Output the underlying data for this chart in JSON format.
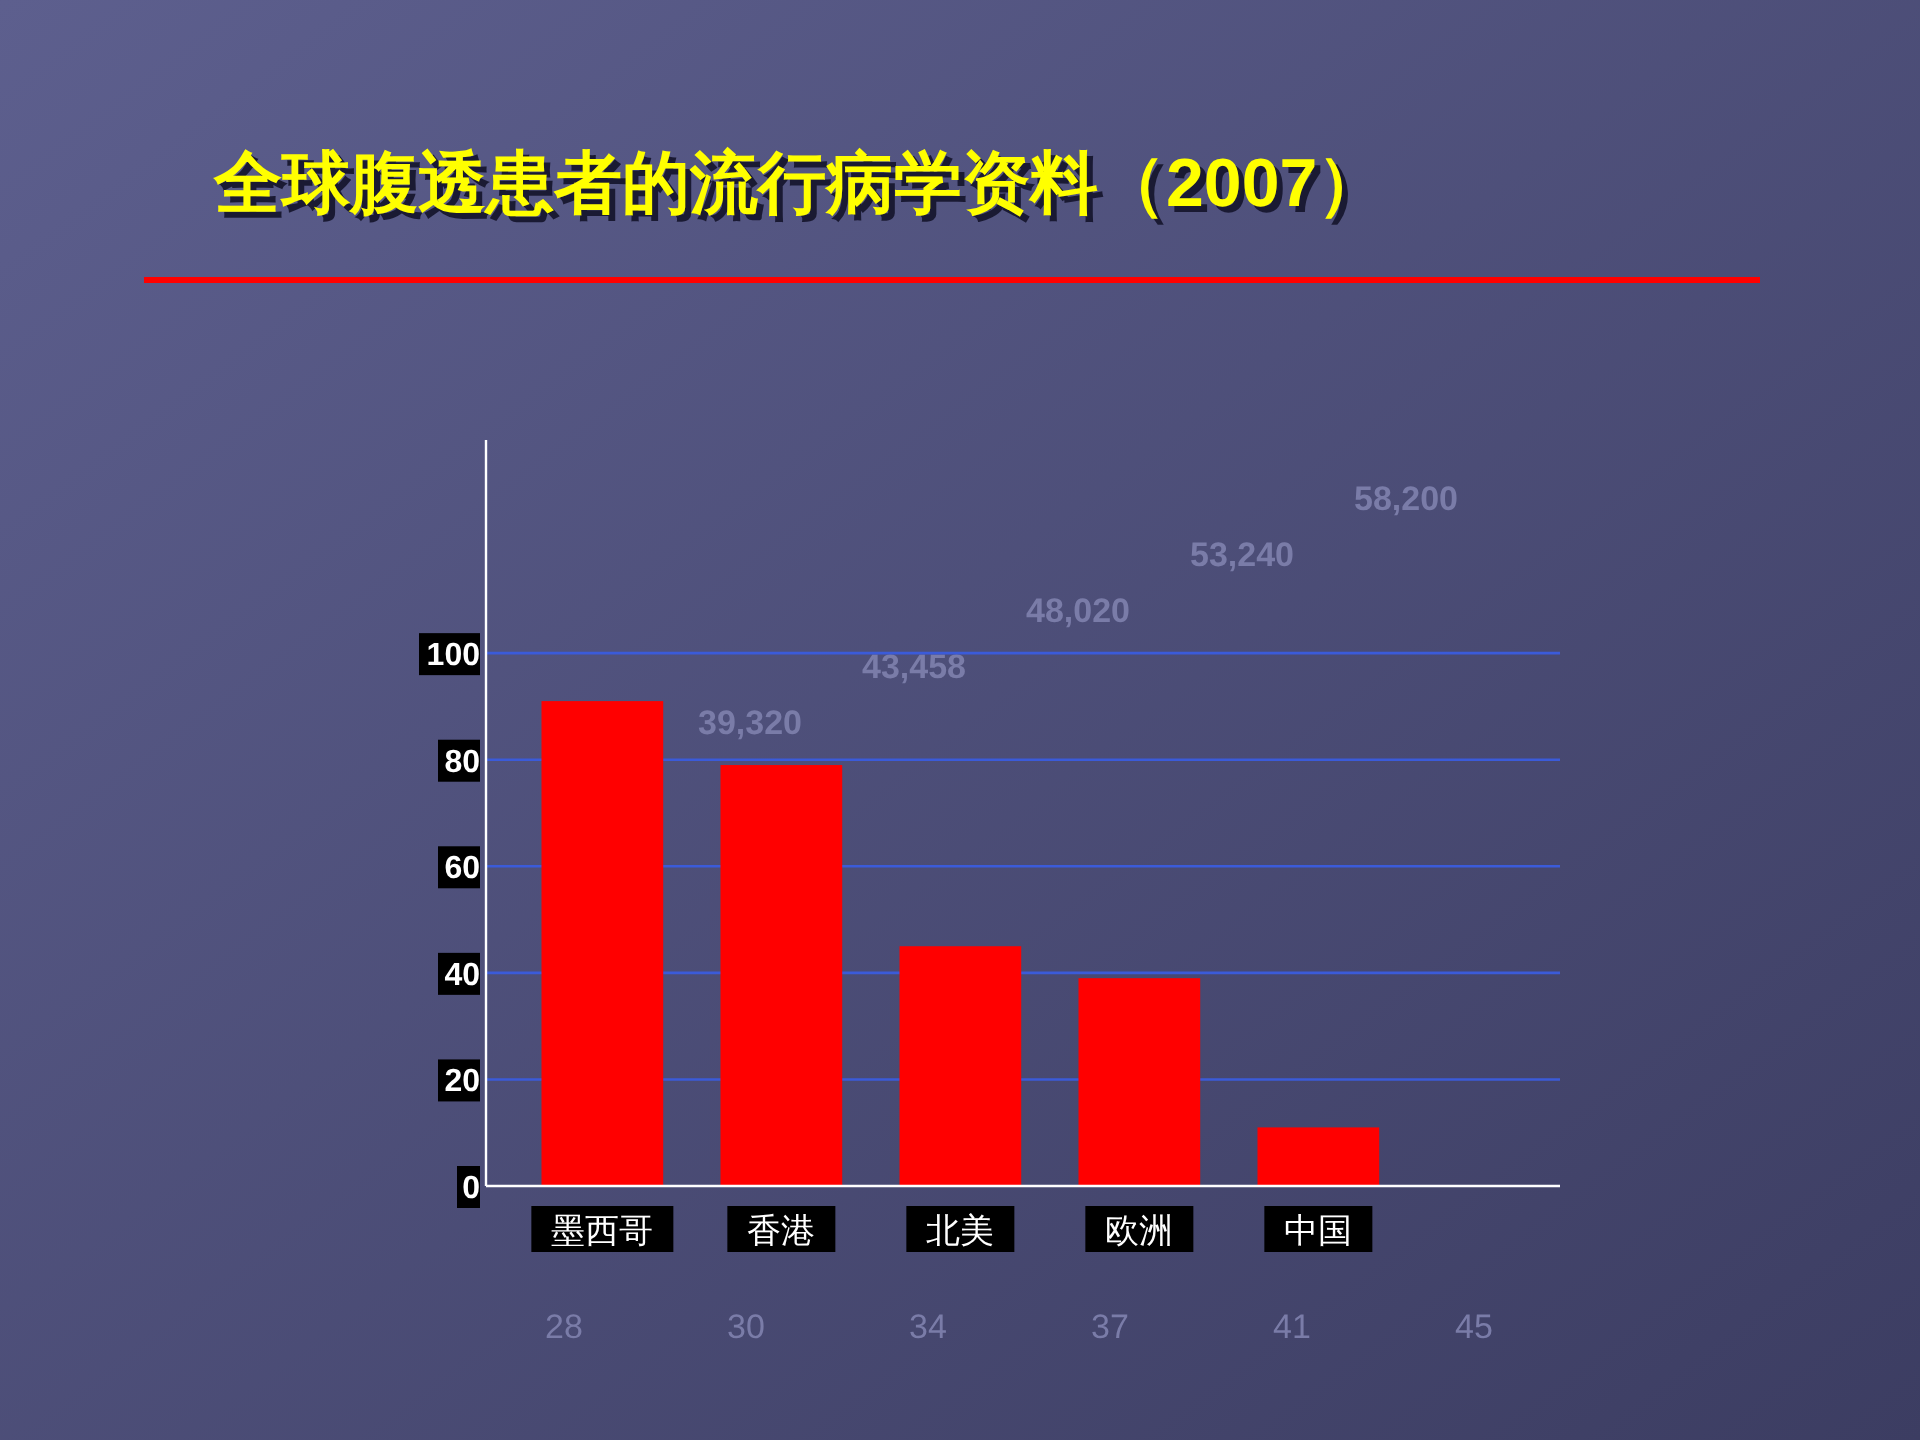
{
  "chart_data": {
    "type": "bar",
    "title": "全球腹透患者的流行病学资料（2007）",
    "categories": [
      "墨西哥",
      "香港",
      "北美",
      "欧洲",
      "中国"
    ],
    "values": [
      91,
      79,
      45,
      39,
      11
    ],
    "color": "#ff0000",
    "ylim": [
      0,
      140
    ],
    "yticks": [
      0,
      20,
      40,
      60,
      80,
      100
    ],
    "grid": "y",
    "annotations": [
      "39,320",
      "43,458",
      "48,020",
      "53,240",
      "58,200",
      "28",
      "30",
      "34",
      "37",
      "41",
      "45"
    ]
  }
}
